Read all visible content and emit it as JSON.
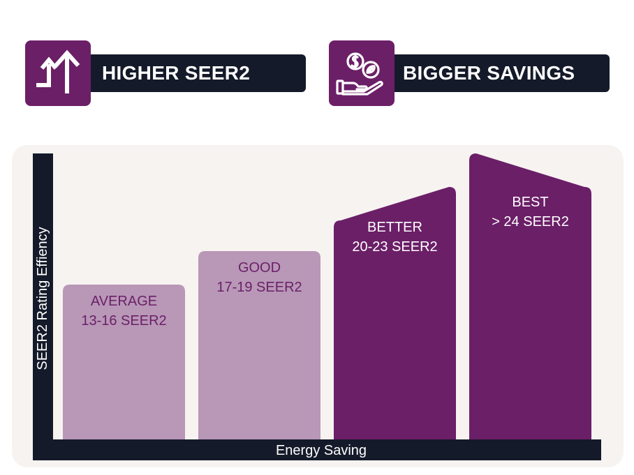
{
  "badges": [
    {
      "label": "HIGHER SEER2",
      "icon": "up-arrows-icon"
    },
    {
      "label": "BIGGER SAVINGS",
      "icon": "money-hand-icon"
    }
  ],
  "colors": {
    "purple": "#6b1f67",
    "light_purple": "#b897b7",
    "dark": "#141a29",
    "panel": "#f7f3f1",
    "white": "#ffffff"
  },
  "chart_data": {
    "type": "bar",
    "xlabel": "Energy Saving",
    "ylabel": "SEER2 Rating Effiency",
    "grid": false,
    "categories": [
      {
        "name": "AVERAGE",
        "range": "13-16 SEER2",
        "level": 1,
        "highlight": false
      },
      {
        "name": "GOOD",
        "range": "17-19 SEER2",
        "level": 2,
        "highlight": false
      },
      {
        "name": "BETTER",
        "range": "20-23 SEER2",
        "level": 3,
        "highlight": true
      },
      {
        "name": "BEST",
        "range": "> 24 SEER2",
        "level": 4,
        "highlight": true
      }
    ]
  }
}
